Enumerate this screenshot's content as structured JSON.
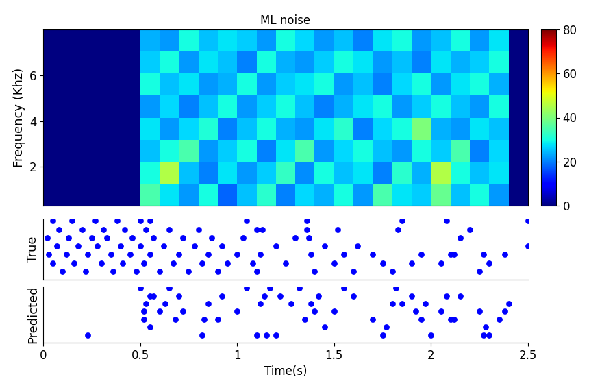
{
  "chart_data": [
    {
      "type": "heatmap",
      "title": "ML noise",
      "y_label": "Frequency (Khz)",
      "xlim": [
        0,
        2.5
      ],
      "ylim": [
        0.3,
        8
      ],
      "xticks": [],
      "yticks": [
        2,
        4,
        6
      ],
      "tick_labels": "y",
      "cells": [
        [
          0,
          0,
          0,
          0,
          0,
          35,
          28,
          22,
          30,
          18,
          25,
          32,
          20,
          27,
          24,
          30,
          22,
          35,
          28,
          26,
          38,
          25,
          30,
          22,
          0
        ],
        [
          0,
          0,
          0,
          0,
          0,
          30,
          45,
          25,
          20,
          28,
          22,
          26,
          33,
          21,
          30,
          25,
          28,
          20,
          32,
          24,
          45,
          30,
          25,
          28,
          0
        ],
        [
          0,
          0,
          0,
          0,
          0,
          25,
          30,
          35,
          22,
          26,
          30,
          20,
          28,
          35,
          22,
          27,
          30,
          25,
          22,
          30,
          26,
          35,
          20,
          27,
          0
        ],
        [
          0,
          0,
          0,
          0,
          0,
          28,
          22,
          27,
          31,
          20,
          25,
          30,
          24,
          22,
          28,
          32,
          20,
          27,
          30,
          40,
          24,
          22,
          28,
          25,
          0
        ],
        [
          0,
          0,
          0,
          0,
          0,
          22,
          27,
          20,
          25,
          30,
          22,
          26,
          30,
          25,
          20,
          24,
          28,
          30,
          22,
          26,
          30,
          25,
          22,
          30,
          0
        ],
        [
          0,
          0,
          0,
          0,
          0,
          30,
          25,
          28,
          22,
          24,
          30,
          22,
          26,
          28,
          30,
          22,
          25,
          20,
          27,
          30,
          22,
          28,
          30,
          24,
          0
        ],
        [
          0,
          0,
          0,
          0,
          0,
          26,
          30,
          22,
          28,
          25,
          20,
          30,
          24,
          22,
          26,
          30,
          28,
          22,
          25,
          20,
          28,
          24,
          26,
          30,
          0
        ],
        [
          0,
          0,
          0,
          0,
          0,
          24,
          22,
          30,
          25,
          28,
          26,
          22,
          30,
          27,
          22,
          25,
          20,
          28,
          30,
          22,
          25,
          30,
          22,
          28,
          0
        ]
      ],
      "colorbar": {
        "range": [
          0,
          80
        ],
        "ticks": [
          0,
          20,
          40,
          60,
          80
        ]
      }
    },
    {
      "type": "scatter",
      "y_label": "True",
      "xlim": [
        0,
        2.5
      ],
      "ylim": [
        0,
        7.2
      ],
      "xticks": [],
      "yticks": [],
      "tick_labels": false,
      "color": "#0000ff",
      "marker": "o",
      "x": [
        0.02,
        0.03,
        0.05,
        0.05,
        0.07,
        0.08,
        0.1,
        0.12,
        0.13,
        0.15,
        0.16,
        0.18,
        0.2,
        0.22,
        0.23,
        0.25,
        0.27,
        0.28,
        0.3,
        0.31,
        0.33,
        0.35,
        0.36,
        0.38,
        0.4,
        0.41,
        0.42,
        0.45,
        0.46,
        0.48,
        0.5,
        0.5,
        0.52,
        0.53,
        0.55,
        0.55,
        0.57,
        0.6,
        0.62,
        0.65,
        0.67,
        0.7,
        0.72,
        0.75,
        0.78,
        0.8,
        0.82,
        0.85,
        0.87,
        0.9,
        0.92,
        0.95,
        1.0,
        1.03,
        1.05,
        1.08,
        1.1,
        1.1,
        1.12,
        1.13,
        1.2,
        1.25,
        1.3,
        1.36,
        1.36,
        1.37,
        1.38,
        1.4,
        1.45,
        1.5,
        1.52,
        1.55,
        1.6,
        1.62,
        1.7,
        1.75,
        1.8,
        1.83,
        1.85,
        1.9,
        1.95,
        2.05,
        2.08,
        2.1,
        2.12,
        2.15,
        2.2,
        2.25,
        2.27,
        2.3,
        2.38,
        2.5,
        2.5
      ],
      "y": [
        5,
        3,
        7,
        2,
        4,
        6,
        1,
        3,
        5,
        7,
        2,
        4,
        6,
        1,
        3,
        5,
        7,
        4,
        2,
        6,
        5,
        3,
        1,
        7,
        4,
        2,
        6,
        3,
        5,
        1,
        7,
        4,
        2,
        6,
        7,
        3,
        5,
        1,
        4,
        6,
        2,
        3,
        5,
        1,
        4,
        6,
        2,
        3,
        5,
        1,
        4,
        2,
        3,
        5,
        7,
        2,
        6,
        1,
        3,
        6,
        4,
        2,
        5,
        7,
        6,
        5,
        3,
        1,
        4,
        2,
        6,
        3,
        1,
        4,
        3,
        2,
        1,
        6,
        7,
        2,
        3,
        2,
        7,
        3,
        3,
        5,
        6,
        1,
        3,
        2,
        3,
        7,
        4
      ]
    },
    {
      "type": "scatter",
      "y_label": "Predicted",
      "x_label": "Time(s)",
      "xlim": [
        0,
        2.5
      ],
      "ylim": [
        0,
        7.2
      ],
      "xticks": [
        0,
        0.5,
        1,
        1.5,
        2,
        2.5
      ],
      "yticks": [],
      "tick_labels": "x",
      "color": "#0000ff",
      "marker": "o",
      "x": [
        0.23,
        0.5,
        0.52,
        0.52,
        0.53,
        0.55,
        0.55,
        0.57,
        0.6,
        0.63,
        0.65,
        0.68,
        0.7,
        0.72,
        0.82,
        0.83,
        0.85,
        0.9,
        0.92,
        1.0,
        1.05,
        1.1,
        1.12,
        1.14,
        1.15,
        1.17,
        1.2,
        1.22,
        1.28,
        1.32,
        1.35,
        1.38,
        1.4,
        1.42,
        1.45,
        1.5,
        1.55,
        1.6,
        1.7,
        1.75,
        1.77,
        1.8,
        1.82,
        1.85,
        1.9,
        1.92,
        1.95,
        1.97,
        2.0,
        2.05,
        2.08,
        2.1,
        2.12,
        2.15,
        2.25,
        2.27,
        2.28,
        2.3,
        2.35,
        2.38,
        2.4
      ],
      "y": [
        1,
        7,
        4,
        3,
        5,
        6,
        2,
        6,
        4,
        5,
        7,
        3,
        6,
        4,
        1,
        3,
        5,
        3,
        6,
        4,
        7,
        1,
        5,
        6,
        1,
        7,
        1,
        6,
        5,
        7,
        3,
        5,
        4,
        6,
        2,
        4,
        7,
        6,
        3,
        1,
        2,
        5,
        7,
        5,
        6,
        4,
        3,
        5,
        1,
        4,
        6,
        3,
        3,
        6,
        4,
        1,
        2,
        1,
        3,
        4,
        5
      ]
    }
  ]
}
